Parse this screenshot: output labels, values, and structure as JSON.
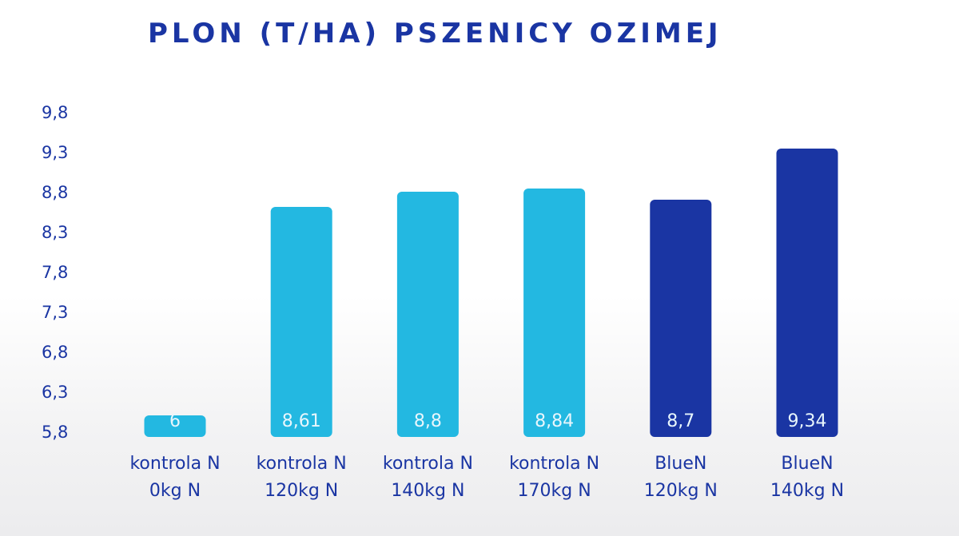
{
  "chart_data": {
    "type": "bar",
    "title": "PLON (T/HA) PSZENICY OZIMEJ",
    "categories": [
      [
        "kontrola N",
        "0kg N"
      ],
      [
        "kontrola N",
        "120kg N"
      ],
      [
        "kontrola N",
        "140kg N"
      ],
      [
        "kontrola N",
        "170kg N"
      ],
      [
        "BlueN",
        "120kg N"
      ],
      [
        "BlueN",
        "140kg N"
      ]
    ],
    "values": [
      6.0,
      8.61,
      8.8,
      8.84,
      8.7,
      9.34
    ],
    "value_labels": [
      "6",
      "8,61",
      "8,8",
      "8,84",
      "8,7",
      "9,34"
    ],
    "bar_colors": [
      "#23b8e1",
      "#23b8e1",
      "#23b8e1",
      "#23b8e1",
      "#1a35a3",
      "#1a35a3"
    ],
    "yticks": [
      "5,8",
      "6,3",
      "6,8",
      "7,3",
      "7,8",
      "8,3",
      "8,8",
      "9,3",
      "9,8"
    ],
    "ylim": [
      5.8,
      9.8
    ],
    "grid": false,
    "legend": "none"
  },
  "colors": {
    "accent_light": "#23b8e1",
    "accent_dark": "#1a35a3",
    "text": "#1a35a3",
    "label_on_bar": "#e8f6fc"
  }
}
